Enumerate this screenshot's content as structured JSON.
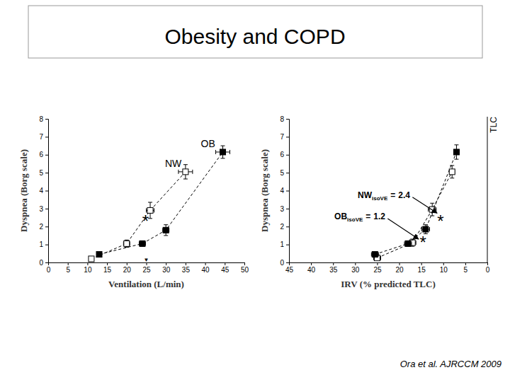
{
  "slide": {
    "title": "Obesity and COPD",
    "citation": "Ora et al. AJRCCM 2009"
  },
  "chart_data": [
    {
      "type": "line",
      "xlabel": "Ventilation (L/min)",
      "ylabel": "Dyspnea (Borg scale)",
      "xlim": [
        0,
        50
      ],
      "xticks": [
        0,
        5,
        10,
        15,
        20,
        25,
        30,
        35,
        40,
        45,
        50
      ],
      "ylim": [
        0,
        8
      ],
      "yticks": [
        0,
        1,
        2,
        3,
        4,
        5,
        6,
        7,
        8
      ],
      "series": [
        {
          "name": "NW",
          "color": "#000000",
          "marker": "open-square",
          "line_style": "dashed",
          "x": [
            11,
            20,
            26,
            35
          ],
          "values": [
            0.2,
            1.05,
            2.9,
            5.05
          ],
          "errors": [
            0.05,
            0.2,
            0.45,
            0.4
          ],
          "x_errors": [
            0.4,
            0.8,
            1,
            1.8
          ]
        },
        {
          "name": "OB",
          "color": "#000000",
          "marker": "filled-square",
          "line_style": "dashed",
          "x": [
            13,
            24,
            30,
            44.5
          ],
          "values": [
            0.45,
            1.05,
            1.8,
            6.15
          ],
          "errors": [
            0.1,
            0.15,
            0.3,
            0.35
          ],
          "x_errors": [
            0.5,
            0.8,
            0.8,
            1.8
          ]
        }
      ],
      "annotations": [
        {
          "text": "*",
          "x": 24.8,
          "y": 2.5
        },
        {
          "text": "▼",
          "x": 25,
          "y": 0.15
        }
      ]
    },
    {
      "type": "line",
      "xlabel": "IRV  (% predicted TLC)",
      "ylabel": "Dyspnea (Borg scale)",
      "xlim": [
        45,
        0
      ],
      "xticks": [
        45,
        40,
        35,
        30,
        25,
        20,
        15,
        10,
        5,
        0
      ],
      "ylim": [
        0,
        8
      ],
      "yticks": [
        0,
        1,
        2,
        3,
        4,
        5,
        6,
        7,
        8
      ],
      "edge_label": "TLC",
      "series": [
        {
          "color": "#000000",
          "marker": "open-square",
          "line_style": "dashed",
          "x": [
            25,
            17,
            12.5,
            8
          ],
          "values": [
            0.25,
            1.1,
            2.95,
            5.05
          ],
          "errors": [
            0.05,
            0.2,
            0.35,
            0.35
          ],
          "x_errors": [
            0.8,
            0.8,
            0.9,
            0.6
          ]
        },
        {
          "color": "#000000",
          "marker": "filled-square",
          "line_style": "dashed",
          "x": [
            25.5,
            18,
            14,
            7
          ],
          "values": [
            0.45,
            1.05,
            1.85,
            6.15
          ],
          "errors": [
            0.1,
            0.15,
            0.25,
            0.4
          ],
          "x_errors": [
            0.8,
            0.8,
            0.9,
            0.6
          ]
        }
      ],
      "annotations": [
        {
          "text": "*",
          "x": 14.6,
          "y": 1.3
        },
        {
          "text": "*",
          "x": 10.6,
          "y": 2.5
        },
        {
          "text": "NW",
          "subscript": "isoVE",
          "operator": "=",
          "value": 2.4,
          "x": 29.4,
          "y": 3.6,
          "arrow_to": [
            11.4,
            2.75
          ]
        },
        {
          "text": "OB",
          "subscript": "isoVE",
          "operator": "=",
          "value": 1.2,
          "x": 34.7,
          "y": 2.4,
          "arrow_to": [
            15.6,
            1.3
          ]
        }
      ]
    }
  ]
}
